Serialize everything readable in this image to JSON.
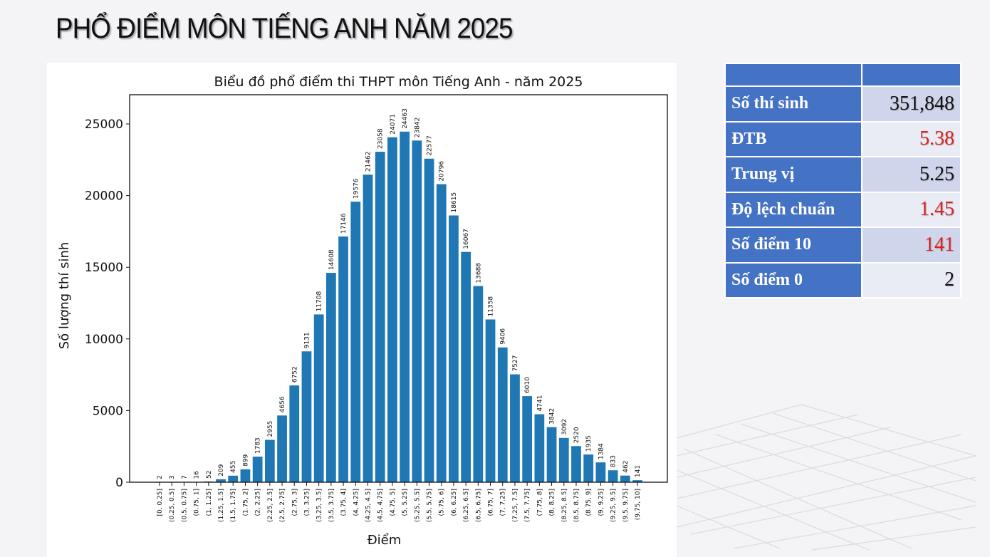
{
  "page": {
    "title": "PHỔ ĐIỂM MÔN TIẾNG ANH NĂM 2025"
  },
  "colors": {
    "bar": "#1f77b4",
    "table_header": "#4472c4",
    "table_value_odd": "#cfd5ea",
    "table_value_even": "#e9ebf5",
    "highlight_red": "#e0201c",
    "normal_text": "#111111"
  },
  "stats_table": {
    "header": [
      "",
      ""
    ],
    "rows": [
      {
        "label": "Số thí sinh",
        "value": "351,848",
        "color": "#111111"
      },
      {
        "label": "ĐTB",
        "value": "5.38",
        "color": "#e0201c"
      },
      {
        "label": "Trung vị",
        "value": "5.25",
        "color": "#111111"
      },
      {
        "label": "Độ lệch chuẩn",
        "value": "1.45",
        "color": "#e0201c"
      },
      {
        "label": "Số điểm 10",
        "value": "141",
        "color": "#e0201c"
      },
      {
        "label": "Số điểm 0",
        "value": "2",
        "color": "#111111"
      }
    ]
  },
  "chart_data": {
    "type": "bar",
    "title": "Biểu đồ phổ điểm thi THPT môn Tiếng Anh - năm 2025",
    "xlabel": "Điểm",
    "ylabel": "Số lượng thí sinh",
    "ylim": [
      0,
      27000
    ],
    "yticks": [
      0,
      5000,
      10000,
      15000,
      20000,
      25000
    ],
    "grid": false,
    "legend": null,
    "categories": [
      "[0, 0.25]",
      "(0.25, 0.5]",
      "(0.5, 0.75]",
      "(0.75, 1]",
      "(1, 1.25]",
      "(1.25, 1.5]",
      "(1.5, 1.75]",
      "(1.75, 2]",
      "(2, 2.25]",
      "(2.25, 2.5]",
      "(2.5, 2.75]",
      "(2.75, 3]",
      "(3, 3.25]",
      "(3.25, 3.5]",
      "(3.5, 3.75]",
      "(3.75, 4]",
      "(4, 4.25]",
      "(4.25, 4.5]",
      "(4.5, 4.75]",
      "(4.75, 5]",
      "(5, 5.25]",
      "(5.25, 5.5]",
      "(5.5, 5.75]",
      "(5.75, 6]",
      "(6, 6.25]",
      "(6.25, 6.5]",
      "(6.5, 6.75]",
      "(6.75, 7]",
      "(7, 7.25]",
      "(7.25, 7.5]",
      "(7.5, 7.75]",
      "(7.75, 8]",
      "(8, 8.25]",
      "(8.25, 8.5]",
      "(8.5, 8.75]",
      "(8.75, 9]",
      "(9, 9.25]",
      "(9.25, 9.5]",
      "(9.5, 9.75]",
      "(9.75, 10]"
    ],
    "values": [
      2,
      3,
      7,
      16,
      52,
      209,
      455,
      899,
      1783,
      2955,
      4656,
      6752,
      9131,
      11708,
      14608,
      17146,
      19576,
      21462,
      23058,
      24071,
      24463,
      23842,
      22577,
      20796,
      18615,
      16067,
      13688,
      11358,
      9406,
      7527,
      6010,
      4741,
      3842,
      3092,
      2520,
      1935,
      1384,
      833,
      462,
      141
    ]
  }
}
